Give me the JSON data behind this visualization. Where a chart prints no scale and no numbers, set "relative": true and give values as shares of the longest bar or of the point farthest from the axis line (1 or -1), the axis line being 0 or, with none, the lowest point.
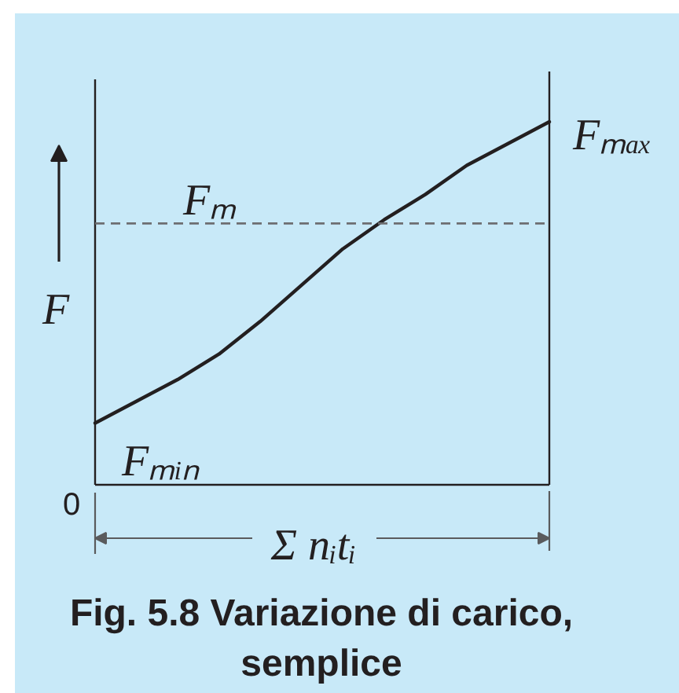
{
  "chart_data": {
    "type": "line",
    "title": "Fig. 5.8 Variazione di carico, semplice",
    "xlabel": "Σ nᵢtᵢ",
    "ylabel": "F",
    "relative": true,
    "categories": [
      null,
      null,
      null,
      null,
      null,
      null,
      null,
      null,
      null,
      null,
      null,
      null
    ],
    "series": [
      {
        "color": "#231f20",
        "values": [
          0.17,
          0.23,
          0.29,
          0.36,
          0.45,
          0.55,
          0.65,
          0.73,
          0.8,
          0.88,
          0.94,
          1.0
        ]
      }
    ],
    "ref_lines": [
      {
        "axis": "y",
        "value": 0.72,
        "label": "Fₘ",
        "color": "#6d6e71",
        "line_style": "dashed"
      }
    ],
    "annotations": [
      "Fₘₐₓ",
      "Fₘᵢₙ",
      "0"
    ]
  }
}
